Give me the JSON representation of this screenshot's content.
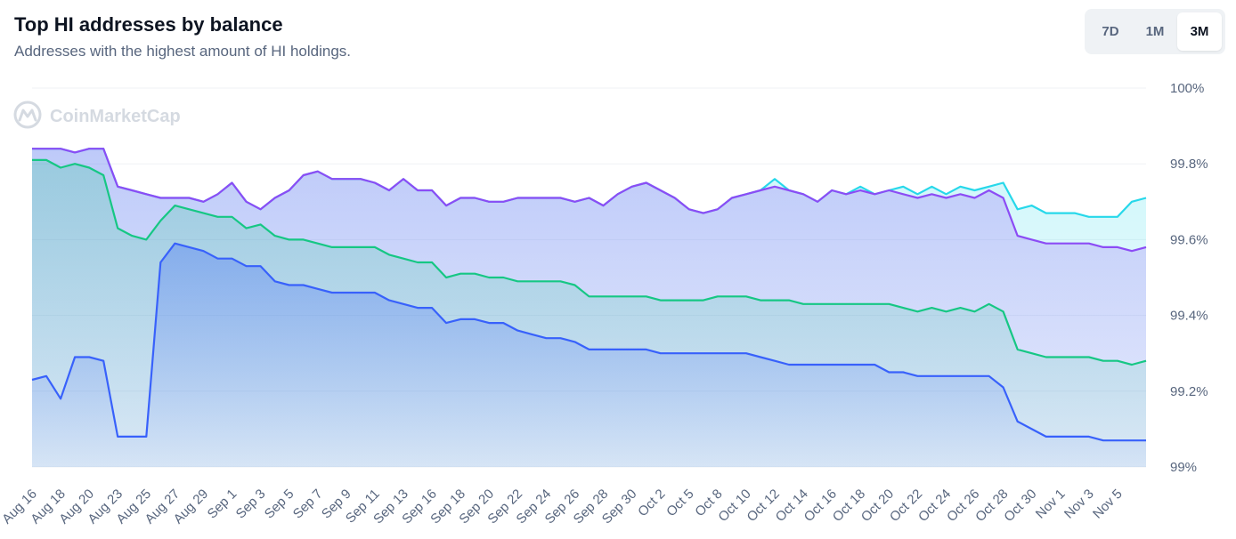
{
  "header": {
    "title": "Top HI addresses by balance",
    "subtitle": "Addresses with the highest amount of HI holdings."
  },
  "range": {
    "options": [
      "7D",
      "1M",
      "3M"
    ],
    "selected": "3M"
  },
  "watermark": "CoinMarketCap",
  "colors": {
    "top10": "#3861fb",
    "top20": "#16c784",
    "top50": "#8c4cf5",
    "top100": "#27d8ea",
    "grid": "#eff2f5"
  },
  "chart_data": {
    "type": "area",
    "y_ticks": [
      "99%",
      "99.2%",
      "99.4%",
      "99.6%",
      "99.8%",
      "100%"
    ],
    "y_tick_values": [
      99,
      99.2,
      99.4,
      99.6,
      99.8,
      100
    ],
    "ylim": [
      99,
      100
    ],
    "x_ticks": [
      "Aug 16",
      "Aug 18",
      "Aug 20",
      "Aug 23",
      "Aug 25",
      "Aug 27",
      "Aug 29",
      "Sep 1",
      "Sep 3",
      "Sep 5",
      "Sep 7",
      "Sep 9",
      "Sep 11",
      "Sep 13",
      "Sep 16",
      "Sep 18",
      "Sep 20",
      "Sep 22",
      "Sep 24",
      "Sep 26",
      "Sep 28",
      "Sep 30",
      "Oct 2",
      "Oct 5",
      "Oct 8",
      "Oct 10",
      "Oct 12",
      "Oct 14",
      "Oct 16",
      "Oct 18",
      "Oct 20",
      "Oct 22",
      "Oct 24",
      "Oct 26",
      "Oct 28",
      "Oct 30",
      "Nov 1",
      "Nov 3",
      "Nov 5"
    ],
    "x_tick_index": [
      0,
      2,
      4,
      6,
      8,
      10,
      12,
      14,
      16,
      18,
      20,
      22,
      24,
      26,
      28,
      30,
      32,
      34,
      36,
      38,
      40,
      42,
      44,
      46,
      48,
      50,
      52,
      54,
      56,
      58,
      60,
      62,
      64,
      66,
      68,
      70,
      72,
      74,
      76
    ],
    "series": [
      {
        "key": "top100",
        "values": [
          99.84,
          99.84,
          99.84,
          99.83,
          99.84,
          99.84,
          99.74,
          99.73,
          99.72,
          99.71,
          99.71,
          99.71,
          99.7,
          99.72,
          99.75,
          99.7,
          99.68,
          99.71,
          99.73,
          99.77,
          99.78,
          99.76,
          99.76,
          99.76,
          99.75,
          99.73,
          99.76,
          99.73,
          99.73,
          99.69,
          99.71,
          99.71,
          99.7,
          99.7,
          99.71,
          99.71,
          99.71,
          99.71,
          99.7,
          99.71,
          99.69,
          99.72,
          99.74,
          99.75,
          99.73,
          99.71,
          99.68,
          99.67,
          99.68,
          99.71,
          99.72,
          99.73,
          99.76,
          99.73,
          99.72,
          99.7,
          99.73,
          99.72,
          99.74,
          99.72,
          99.73,
          99.74,
          99.72,
          99.74,
          99.72,
          99.74,
          99.73,
          99.74,
          99.75,
          99.68,
          99.69,
          99.67,
          99.67,
          99.67,
          99.66,
          99.66,
          99.66,
          99.7,
          99.71
        ]
      },
      {
        "key": "top50",
        "values": [
          99.84,
          99.84,
          99.84,
          99.83,
          99.84,
          99.84,
          99.74,
          99.73,
          99.72,
          99.71,
          99.71,
          99.71,
          99.7,
          99.72,
          99.75,
          99.7,
          99.68,
          99.71,
          99.73,
          99.77,
          99.78,
          99.76,
          99.76,
          99.76,
          99.75,
          99.73,
          99.76,
          99.73,
          99.73,
          99.69,
          99.71,
          99.71,
          99.7,
          99.7,
          99.71,
          99.71,
          99.71,
          99.71,
          99.7,
          99.71,
          99.69,
          99.72,
          99.74,
          99.75,
          99.73,
          99.71,
          99.68,
          99.67,
          99.68,
          99.71,
          99.72,
          99.73,
          99.74,
          99.73,
          99.72,
          99.7,
          99.73,
          99.72,
          99.73,
          99.72,
          99.73,
          99.72,
          99.71,
          99.72,
          99.71,
          99.72,
          99.71,
          99.73,
          99.71,
          99.61,
          99.6,
          99.59,
          99.59,
          99.59,
          99.59,
          99.58,
          99.58,
          99.57,
          99.58
        ]
      },
      {
        "key": "top20",
        "values": [
          99.81,
          99.81,
          99.79,
          99.8,
          99.79,
          99.77,
          99.63,
          99.61,
          99.6,
          99.65,
          99.69,
          99.68,
          99.67,
          99.66,
          99.66,
          99.63,
          99.64,
          99.61,
          99.6,
          99.6,
          99.59,
          99.58,
          99.58,
          99.58,
          99.58,
          99.56,
          99.55,
          99.54,
          99.54,
          99.5,
          99.51,
          99.51,
          99.5,
          99.5,
          99.49,
          99.49,
          99.49,
          99.49,
          99.48,
          99.45,
          99.45,
          99.45,
          99.45,
          99.45,
          99.44,
          99.44,
          99.44,
          99.44,
          99.45,
          99.45,
          99.45,
          99.44,
          99.44,
          99.44,
          99.43,
          99.43,
          99.43,
          99.43,
          99.43,
          99.43,
          99.43,
          99.42,
          99.41,
          99.42,
          99.41,
          99.42,
          99.41,
          99.43,
          99.41,
          99.31,
          99.3,
          99.29,
          99.29,
          99.29,
          99.29,
          99.28,
          99.28,
          99.27,
          99.28
        ]
      },
      {
        "key": "top10",
        "values": [
          99.23,
          99.24,
          99.18,
          99.29,
          99.29,
          99.28,
          99.08,
          99.08,
          99.08,
          99.54,
          99.59,
          99.58,
          99.57,
          99.55,
          99.55,
          99.53,
          99.53,
          99.49,
          99.48,
          99.48,
          99.47,
          99.46,
          99.46,
          99.46,
          99.46,
          99.44,
          99.43,
          99.42,
          99.42,
          99.38,
          99.39,
          99.39,
          99.38,
          99.38,
          99.36,
          99.35,
          99.34,
          99.34,
          99.33,
          99.31,
          99.31,
          99.31,
          99.31,
          99.31,
          99.3,
          99.3,
          99.3,
          99.3,
          99.3,
          99.3,
          99.3,
          99.29,
          99.28,
          99.27,
          99.27,
          99.27,
          99.27,
          99.27,
          99.27,
          99.27,
          99.25,
          99.25,
          99.24,
          99.24,
          99.24,
          99.24,
          99.24,
          99.24,
          99.21,
          99.12,
          99.1,
          99.08,
          99.08,
          99.08,
          99.08,
          99.07,
          99.07,
          99.07,
          99.07
        ]
      }
    ]
  }
}
